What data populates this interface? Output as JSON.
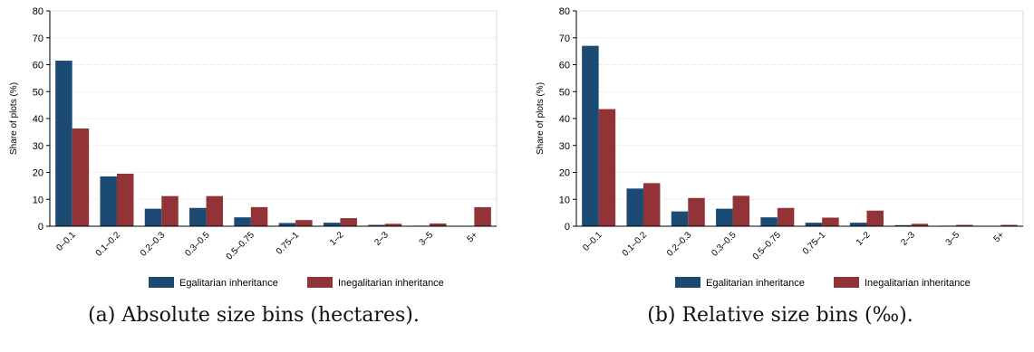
{
  "colors": {
    "egalitarian": "#1b4a72",
    "inegalitarian": "#923338",
    "grid": "#e6e6e6",
    "axis": "#000000"
  },
  "chart_data": [
    {
      "type": "bar",
      "caption": "(a) Absolute size bins (hectares).",
      "ylabel": "Share of plots (%)",
      "ylim": [
        0,
        80
      ],
      "yticks": [
        0,
        10,
        20,
        30,
        40,
        50,
        60,
        70,
        80
      ],
      "grid": true,
      "legend_position": "bottom",
      "categories": [
        "0–0.1",
        "0.1–0.2",
        "0.2–0.3",
        "0.3–0.5",
        "0.5–0.75",
        "0.75–1",
        "1–2",
        "2–3",
        "3–5",
        "5+"
      ],
      "series": [
        {
          "name": "Egalitarian inheritance",
          "values": [
            61.5,
            18.5,
            6.5,
            6.8,
            3.3,
            1.2,
            1.3,
            0.5,
            0.2,
            0.1
          ]
        },
        {
          "name": "Inegalitarian inheritance",
          "values": [
            36.3,
            19.5,
            11.2,
            11.2,
            7.1,
            2.3,
            3.0,
            0.9,
            1.0,
            7.1
          ]
        }
      ]
    },
    {
      "type": "bar",
      "caption": "(b) Relative size bins (‰).",
      "ylabel": "Share of plots (%)",
      "ylim": [
        0,
        80
      ],
      "yticks": [
        0,
        10,
        20,
        30,
        40,
        50,
        60,
        70,
        80
      ],
      "grid": true,
      "legend_position": "bottom",
      "categories": [
        "0–0.1",
        "0.1–0.2",
        "0.2–0.3",
        "0.3–0.5",
        "0.5–0.75",
        "0.75–1",
        "1–2",
        "2–3",
        "3–5",
        "5+"
      ],
      "series": [
        {
          "name": "Egalitarian inheritance",
          "values": [
            67.0,
            14.0,
            5.5,
            6.5,
            3.3,
            1.3,
            1.3,
            0.4,
            0.2,
            0.1
          ]
        },
        {
          "name": "Inegalitarian inheritance",
          "values": [
            43.5,
            16.0,
            10.5,
            11.3,
            6.8,
            3.2,
            5.8,
            0.9,
            0.5,
            0.5
          ]
        }
      ]
    }
  ]
}
